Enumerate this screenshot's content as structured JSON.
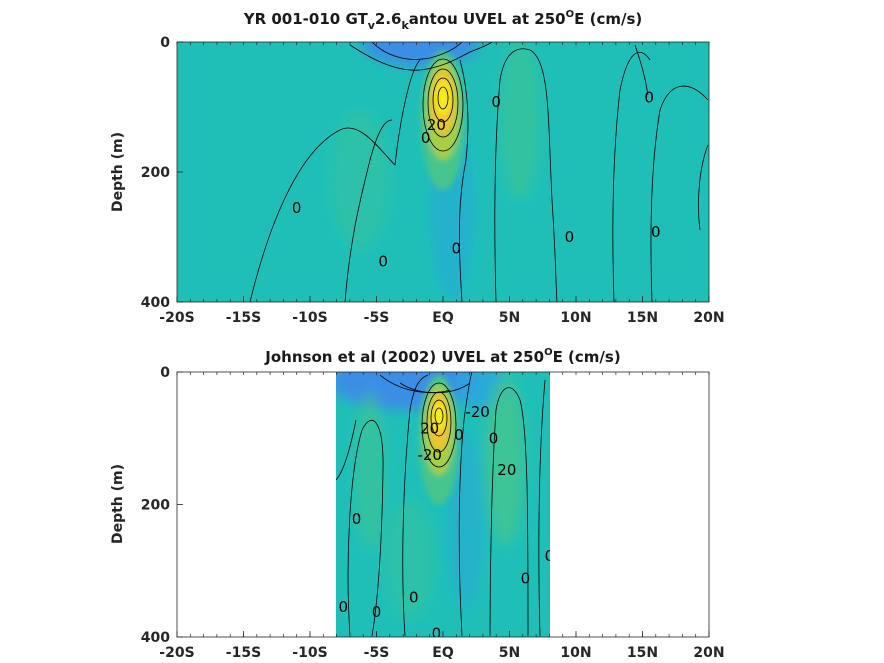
{
  "colors": {
    "background_field": "#1fbfb8",
    "negative_deep": "#3a8ee6",
    "negative_mid": "#2aa6dd",
    "positive_low": "#46c58c",
    "positive_mid": "#a6cf43",
    "positive_high": "#f0c52e",
    "positive_max": "#f7ec15",
    "contour": "#000000"
  },
  "chart_data": [
    {
      "type": "heatmap",
      "panel": "top",
      "title_parts": {
        "prefix": "YR 001-010 GT",
        "sub1": "v",
        "mid": "2.6",
        "sub2": "k",
        "rest": "antou UVEL at 250",
        "sup": "O",
        "suffix": "E (cm/s)"
      },
      "xlabel": "",
      "ylabel": "Depth (m)",
      "xlim": [
        -20,
        20
      ],
      "ylim": [
        0,
        400
      ],
      "y_reversed": true,
      "xticks": [
        -20,
        -15,
        -10,
        -5,
        0,
        5,
        10,
        15,
        20
      ],
      "xtick_labels": [
        "-20S",
        "-15S",
        "-10S",
        "-5S",
        "EQ",
        "5N",
        "10N",
        "15N",
        "20N"
      ],
      "yticks": [
        0,
        200,
        400
      ],
      "ytick_labels": [
        "0",
        "200",
        "400"
      ],
      "data_x_range": [
        -20,
        20
      ],
      "features": [
        {
          "kind": "jet",
          "lat": 0.0,
          "depth": 95,
          "max": 90
        },
        {
          "kind": "westward_surface",
          "lat": -2,
          "depth": 10,
          "min": -25
        }
      ],
      "contour_labels": [
        {
          "text": "0",
          "lat": -11.0,
          "depth": 255
        },
        {
          "text": "0",
          "lat": -4.5,
          "depth": 338
        },
        {
          "text": "0",
          "lat": 1.0,
          "depth": 318
        },
        {
          "text": "0",
          "lat": 4.0,
          "depth": 92
        },
        {
          "text": "0",
          "lat": 9.5,
          "depth": 300
        },
        {
          "text": "0",
          "lat": 15.5,
          "depth": 85
        },
        {
          "text": "0",
          "lat": 16.0,
          "depth": 292
        },
        {
          "text": "20",
          "lat": -0.5,
          "depth": 128
        },
        {
          "text": "0",
          "lat": -1.3,
          "depth": 148
        }
      ]
    },
    {
      "type": "heatmap",
      "panel": "bottom",
      "title_parts": {
        "prefix": "Johnson et al (2002) UVEL at 250",
        "sup": "O",
        "suffix": "E (cm/s)"
      },
      "xlabel": "",
      "ylabel": "Depth (m)",
      "xlim": [
        -20,
        20
      ],
      "ylim": [
        0,
        400
      ],
      "y_reversed": true,
      "xticks": [
        -20,
        -15,
        -10,
        -5,
        0,
        5,
        10,
        15,
        20
      ],
      "xtick_labels": [
        "-20S",
        "-15S",
        "-10S",
        "-5S",
        "EQ",
        "5N",
        "10N",
        "15N",
        "20N"
      ],
      "yticks": [
        0,
        200,
        400
      ],
      "ytick_labels": [
        "0",
        "200",
        "400"
      ],
      "data_x_range": [
        -8,
        8
      ],
      "features": [
        {
          "kind": "jet",
          "lat": 0.0,
          "depth": 70,
          "max": 100
        },
        {
          "kind": "westward_surface",
          "lat": -1,
          "depth": 15,
          "min": -30
        }
      ],
      "contour_labels": [
        {
          "text": "20",
          "lat": -1.0,
          "depth": 85
        },
        {
          "text": "0",
          "lat": 1.2,
          "depth": 95
        },
        {
          "text": "-20",
          "lat": 2.6,
          "depth": 60
        },
        {
          "text": "0",
          "lat": 3.8,
          "depth": 100
        },
        {
          "text": "20",
          "lat": 4.8,
          "depth": 148
        },
        {
          "text": "-20",
          "lat": -1.0,
          "depth": 125
        },
        {
          "text": "0",
          "lat": -6.5,
          "depth": 222
        },
        {
          "text": "0",
          "lat": -7.5,
          "depth": 355
        },
        {
          "text": "0",
          "lat": -5.0,
          "depth": 362
        },
        {
          "text": "0",
          "lat": -2.2,
          "depth": 340
        },
        {
          "text": "0",
          "lat": -0.5,
          "depth": 395
        },
        {
          "text": "0",
          "lat": 6.2,
          "depth": 312
        },
        {
          "text": "0",
          "lat": 8.0,
          "depth": 278
        }
      ]
    }
  ]
}
